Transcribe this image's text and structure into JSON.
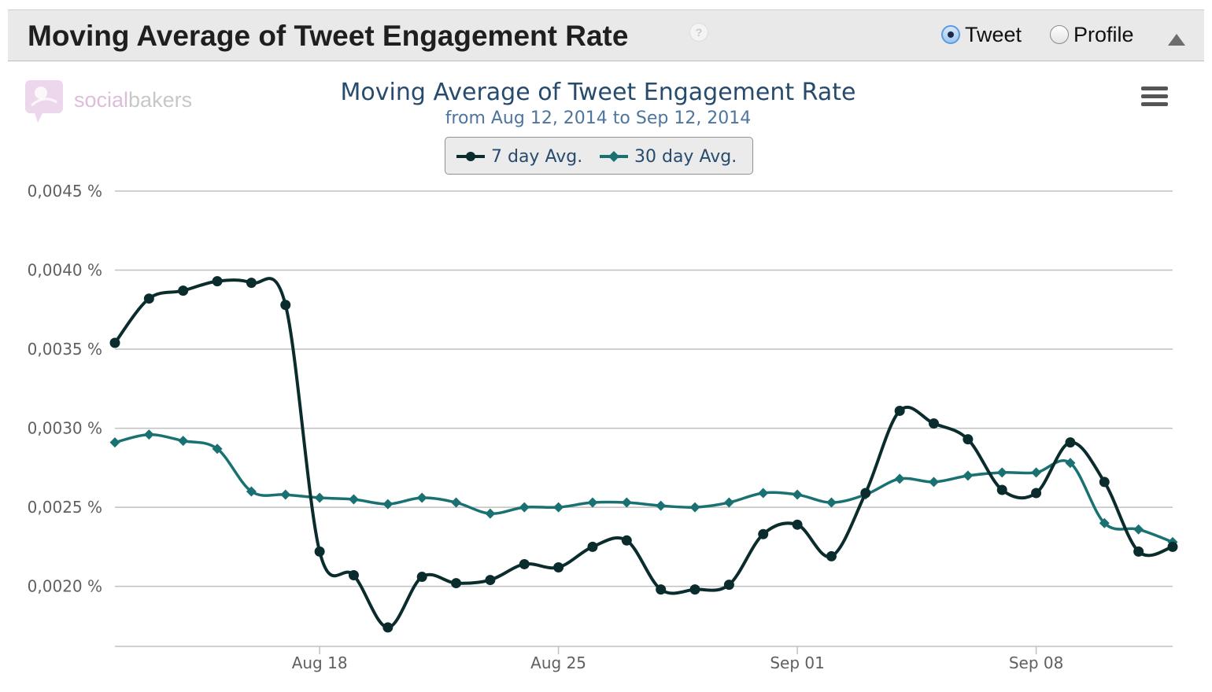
{
  "panel": {
    "title": "Moving Average of Tweet Engagement Rate",
    "help_symbol": "?",
    "radio_options": [
      {
        "label": "Tweet",
        "selected": true
      },
      {
        "label": "Profile",
        "selected": false
      }
    ],
    "collapse_icon": "triangle-up-icon"
  },
  "logo": {
    "part1": "social",
    "part2": "bakers"
  },
  "menu_icon": "hamburger-menu-icon",
  "colors": {
    "series_7day": "#0b2c2d",
    "series_30day": "#1a7172",
    "grid": "#c0c0c0",
    "title": "#274b6d"
  },
  "chart_data": {
    "type": "line",
    "title": "Moving Average of Tweet Engagement Rate",
    "subtitle": "from Aug 12, 2014 to Sep 12, 2014",
    "xlabel": "",
    "ylabel": "",
    "x": [
      "2014-08-12",
      "2014-08-13",
      "2014-08-14",
      "2014-08-15",
      "2014-08-16",
      "2014-08-17",
      "2014-08-18",
      "2014-08-19",
      "2014-08-20",
      "2014-08-21",
      "2014-08-22",
      "2014-08-23",
      "2014-08-24",
      "2014-08-25",
      "2014-08-26",
      "2014-08-27",
      "2014-08-28",
      "2014-08-29",
      "2014-08-30",
      "2014-08-31",
      "2014-09-01",
      "2014-09-02",
      "2014-09-03",
      "2014-09-04",
      "2014-09-05",
      "2014-09-06",
      "2014-09-07",
      "2014-09-08",
      "2014-09-09",
      "2014-09-10",
      "2014-09-11",
      "2014-09-12"
    ],
    "x_ticks": [
      {
        "date": "2014-08-18",
        "label": "Aug 18"
      },
      {
        "date": "2014-08-25",
        "label": "Aug 25"
      },
      {
        "date": "2014-09-01",
        "label": "Sep 01"
      },
      {
        "date": "2014-09-08",
        "label": "Sep 08"
      }
    ],
    "y_ticks": [
      {
        "value": 0.002,
        "label": "0,0020 %"
      },
      {
        "value": 0.0025,
        "label": "0,0025 %"
      },
      {
        "value": 0.003,
        "label": "0,0030 %"
      },
      {
        "value": 0.0035,
        "label": "0,0035 %"
      },
      {
        "value": 0.004,
        "label": "0,0040 %"
      },
      {
        "value": 0.0045,
        "label": "0,0045 %"
      }
    ],
    "ylim": [
      0.00162,
      0.0045
    ],
    "grid": true,
    "legend_position": "top-center",
    "series": [
      {
        "name": "7 day Avg.",
        "marker": "circle",
        "values": [
          0.00354,
          0.00382,
          0.00387,
          0.00393,
          0.00392,
          0.00378,
          0.00222,
          0.00207,
          0.00174,
          0.00206,
          0.00202,
          0.00204,
          0.00214,
          0.00212,
          0.00225,
          0.00229,
          0.00198,
          0.00198,
          0.00201,
          0.00233,
          0.00239,
          0.00219,
          0.00259,
          0.00311,
          0.00303,
          0.00293,
          0.00261,
          0.00259,
          0.00291,
          0.00266,
          0.00222,
          0.00225
        ]
      },
      {
        "name": "30 day Avg.",
        "marker": "diamond",
        "values": [
          0.00291,
          0.00296,
          0.00292,
          0.00287,
          0.0026,
          0.00258,
          0.00256,
          0.00255,
          0.00252,
          0.00256,
          0.00253,
          0.00246,
          0.0025,
          0.0025,
          0.00253,
          0.00253,
          0.00251,
          0.0025,
          0.00253,
          0.00259,
          0.00258,
          0.00253,
          0.00258,
          0.00268,
          0.00266,
          0.0027,
          0.00272,
          0.00272,
          0.00278,
          0.0024,
          0.00236,
          0.00228
        ]
      }
    ]
  }
}
